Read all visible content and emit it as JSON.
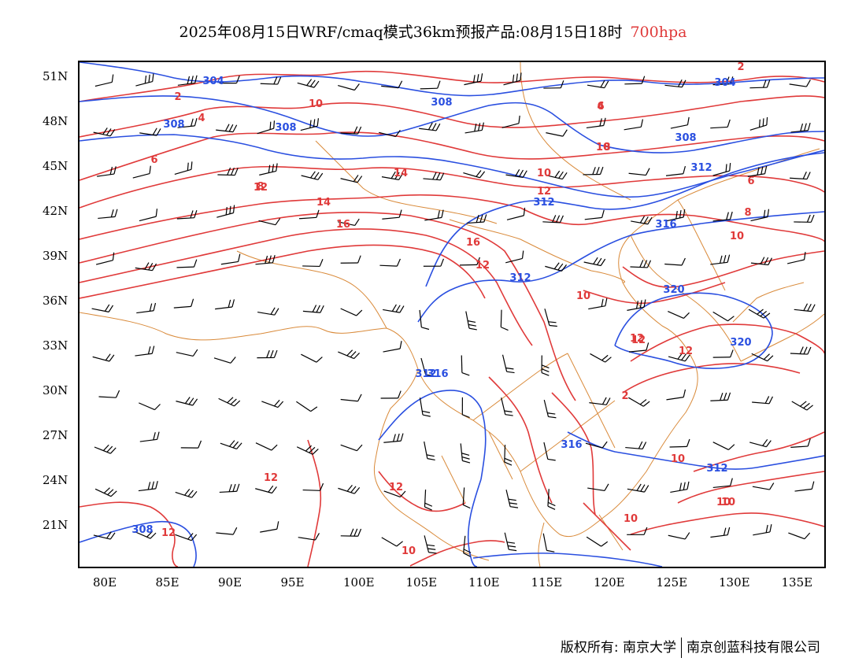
{
  "title": {
    "main": "2025年08月15日WRF/cmaq模式36km预报产品:08月15日18时",
    "level": "700hpa"
  },
  "colors": {
    "height_contour": "#2a4fe0",
    "temperature_contour": "#e03a3a",
    "boundary": "#d98a3a",
    "wind_barb": "#000000",
    "level_text": "#e03a3a"
  },
  "axes": {
    "lon_labels": [
      "80E",
      "85E",
      "90E",
      "95E",
      "100E",
      "105E",
      "110E",
      "115E",
      "120E",
      "125E",
      "130E",
      "135E"
    ],
    "lat_labels": [
      "51N",
      "48N",
      "45N",
      "42N",
      "39N",
      "36N",
      "33N",
      "30N",
      "27N",
      "24N",
      "21N"
    ]
  },
  "height_contour_labels": [
    "304",
    "308",
    "308",
    "308",
    "304",
    "308",
    "312",
    "312",
    "316",
    "312",
    "320",
    "320",
    "312",
    "316",
    "316",
    "312",
    "308"
  ],
  "temperature_contour_labels": [
    "2",
    "4",
    "6",
    "8",
    "10",
    "12",
    "14",
    "16",
    "2",
    "4",
    "6",
    "8",
    "10",
    "10",
    "12",
    "14",
    "16",
    "12",
    "10",
    "12",
    "12",
    "6",
    "8",
    "10",
    "12",
    "2",
    "10",
    "10",
    "10",
    "12",
    "12",
    "10",
    "12",
    "10"
  ],
  "footer": {
    "left": "版权所有: 南京大学",
    "right": "南京创蓝科技有限公司"
  }
}
